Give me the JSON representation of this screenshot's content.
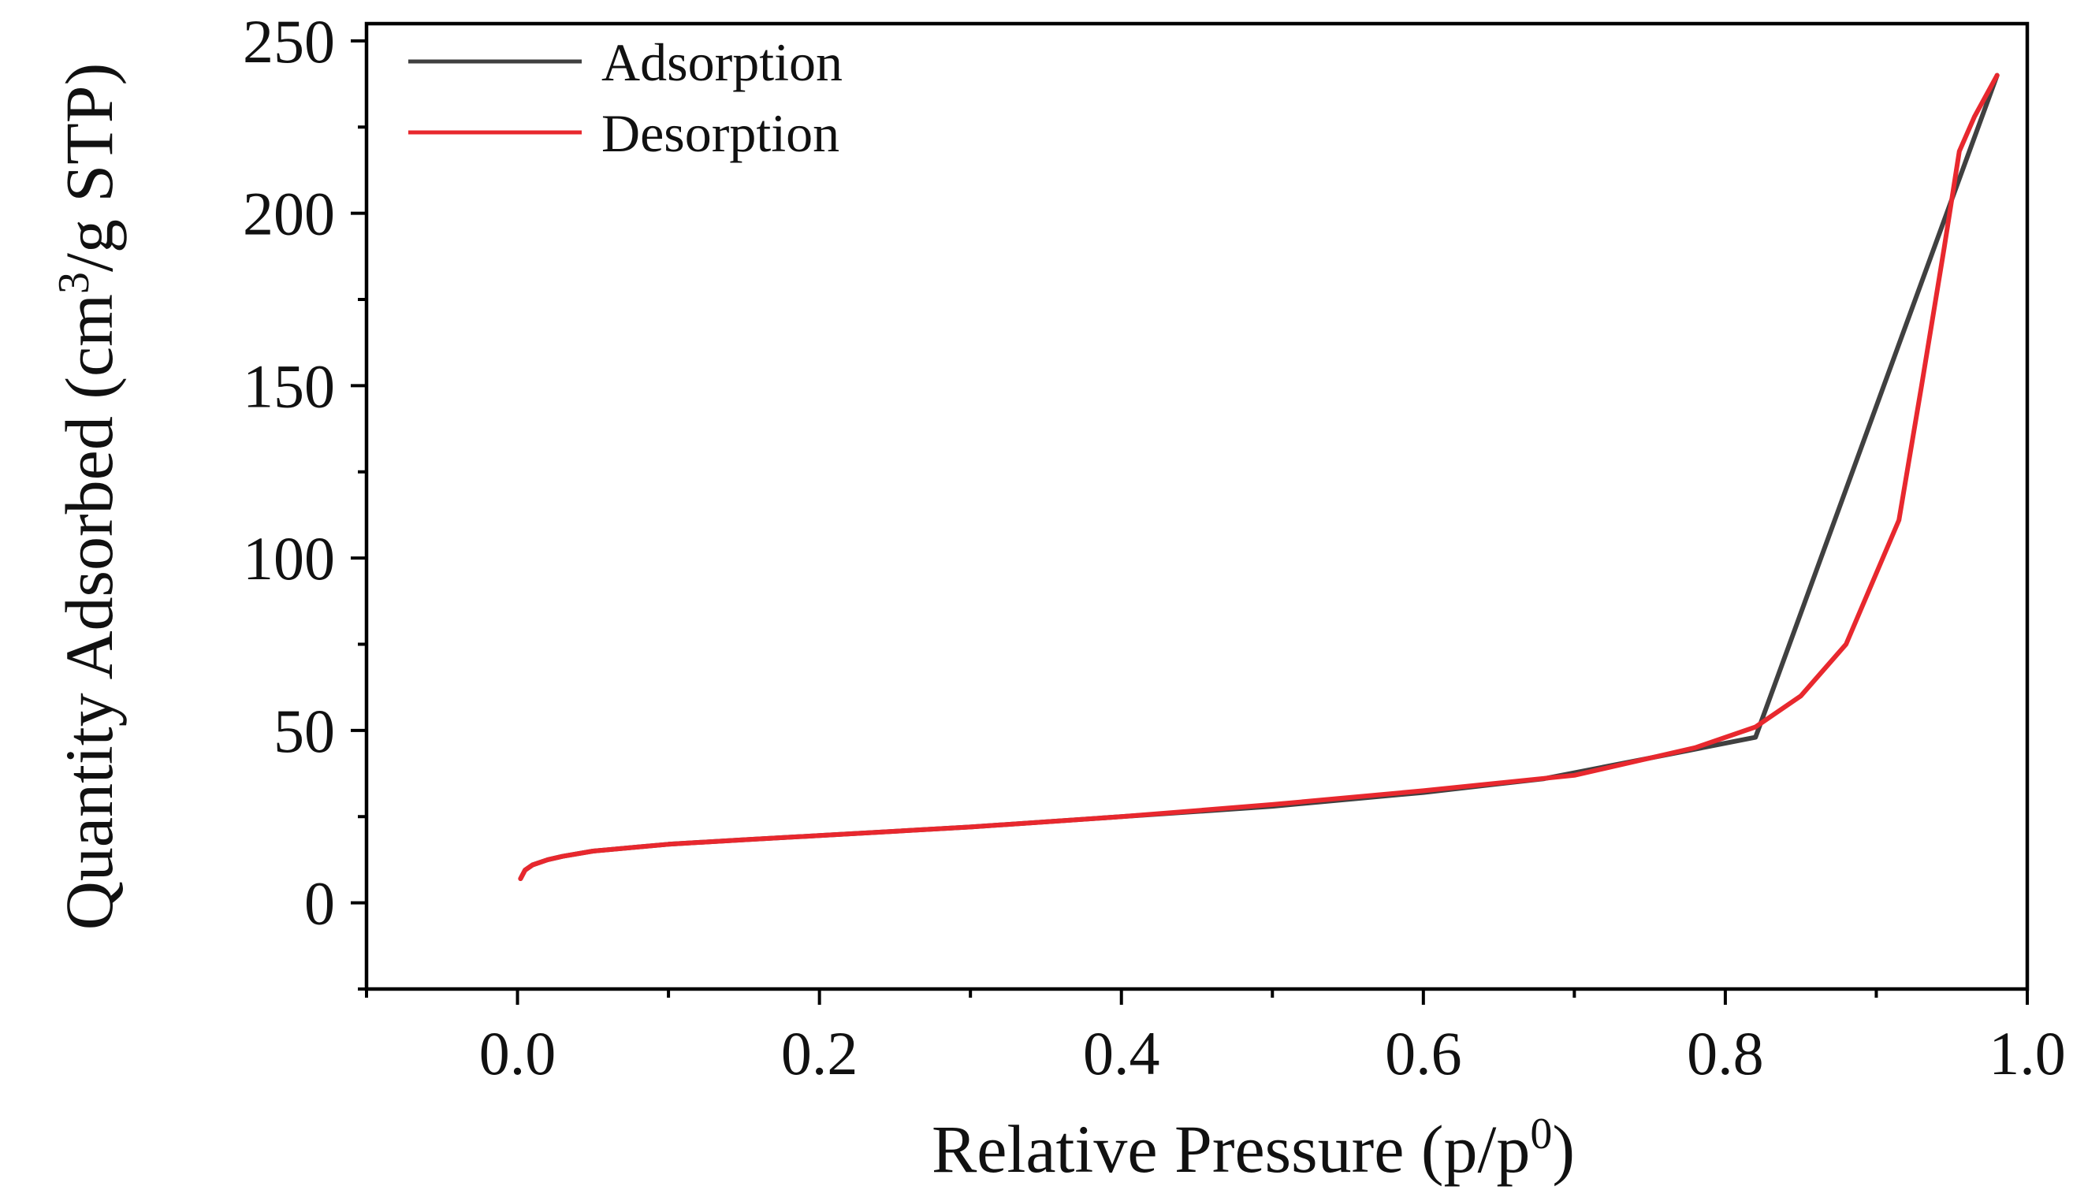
{
  "chart_data": {
    "type": "line",
    "title": "",
    "xlabel": "Relative Pressure (p/p",
    "xlabel_sup": "0",
    "xlabel_close": ")",
    "ylabel": "Quantity Adsorbed (cm",
    "ylabel_sup": "3",
    "ylabel_close": "/g STP)",
    "xlim": [
      -0.1,
      1.0
    ],
    "ylim": [
      -25,
      255
    ],
    "xticks": [
      0.0,
      0.2,
      0.4,
      0.6,
      0.8,
      1.0
    ],
    "xtick_labels": [
      "0.0",
      "0.2",
      "0.4",
      "0.6",
      "0.8",
      "1.0"
    ],
    "yticks": [
      0,
      50,
      100,
      150,
      200,
      250
    ],
    "ytick_labels": [
      "0",
      "50",
      "100",
      "150",
      "200",
      "250"
    ],
    "grid": false,
    "legend_position": "top-left",
    "series": [
      {
        "name": "Adsorption",
        "color": "#404040",
        "x": [
          0.002,
          0.005,
          0.01,
          0.02,
          0.03,
          0.05,
          0.08,
          0.1,
          0.15,
          0.2,
          0.3,
          0.4,
          0.5,
          0.6,
          0.68,
          0.75,
          0.82,
          0.98
        ],
        "y": [
          7,
          9.5,
          11,
          12.5,
          13.5,
          15,
          16.2,
          17,
          18.3,
          19.5,
          22,
          25,
          28,
          32,
          36,
          42,
          48,
          240
        ]
      },
      {
        "name": "Desorption",
        "color": "#e8282e",
        "x": [
          0.002,
          0.005,
          0.01,
          0.02,
          0.03,
          0.05,
          0.08,
          0.1,
          0.15,
          0.2,
          0.3,
          0.4,
          0.5,
          0.6,
          0.7,
          0.78,
          0.82,
          0.85,
          0.88,
          0.915,
          0.93,
          0.945,
          0.955,
          0.965,
          0.98
        ],
        "y": [
          7,
          9.5,
          11,
          12.5,
          13.5,
          15,
          16.2,
          17,
          18.3,
          19.5,
          22,
          25,
          28.5,
          32.5,
          37,
          45,
          51,
          60,
          75,
          111,
          150,
          190,
          218,
          228,
          240
        ]
      }
    ]
  }
}
